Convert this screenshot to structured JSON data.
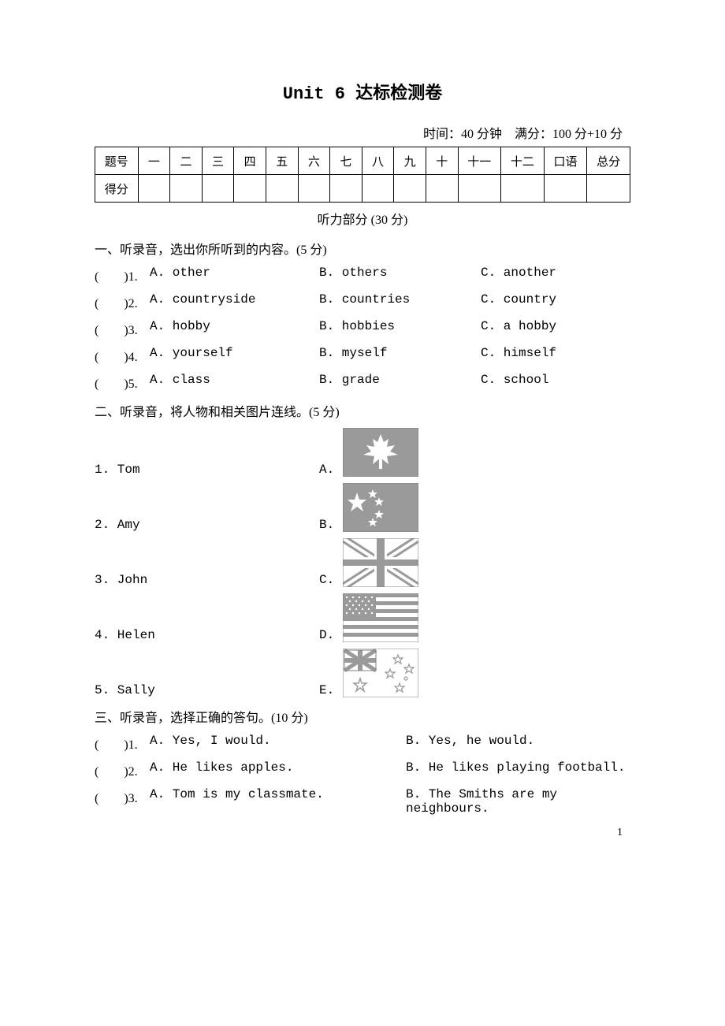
{
  "title": "Unit 6 达标检测卷",
  "meta_line": "时间：40 分钟　满分：100 分+10 分",
  "score_table": {
    "header": [
      "题号",
      "一",
      "二",
      "三",
      "四",
      "五",
      "六",
      "七",
      "八",
      "九",
      "十",
      "十一",
      "十二",
      "口语",
      "总分"
    ],
    "row_label": "得分"
  },
  "listening_header": "听力部分 (30 分)",
  "section1": {
    "heading": "一、听录音，选出你所听到的内容。(5 分)",
    "rows": [
      {
        "n": "1",
        "a": "other",
        "b": "others",
        "c": "another"
      },
      {
        "n": "2",
        "a": "countryside",
        "b": "countries",
        "c": "country"
      },
      {
        "n": "3",
        "a": "hobby",
        "b": "hobbies",
        "c": "a hobby"
      },
      {
        "n": "4",
        "a": "yourself",
        "b": "myself",
        "c": "himself"
      },
      {
        "n": "5",
        "a": "class",
        "b": "grade",
        "c": "school"
      }
    ]
  },
  "section2": {
    "heading": "二、听录音，将人物和相关图片连线。(5 分)",
    "rows": [
      {
        "n": "1",
        "name": "Tom",
        "letter": "A.",
        "flag": "canada"
      },
      {
        "n": "2",
        "name": "Amy",
        "letter": "B.",
        "flag": "china"
      },
      {
        "n": "3",
        "name": "John",
        "letter": "C.",
        "flag": "uk"
      },
      {
        "n": "4",
        "name": "Helen",
        "letter": "D.",
        "flag": "usa"
      },
      {
        "n": "5",
        "name": "Sally",
        "letter": "E.",
        "flag": "australia"
      }
    ]
  },
  "section3": {
    "heading": "三、听录音，选择正确的答句。(10 分)",
    "rows": [
      {
        "n": "1",
        "a": "Yes, I would.",
        "b": "Yes, he would."
      },
      {
        "n": "2",
        "a": "He likes apples.",
        "b": "He likes playing football."
      },
      {
        "n": "3",
        "a": "Tom is my classmate.",
        "b": "The Smiths are my neighbours."
      }
    ]
  },
  "paren_blank": "(　　)",
  "pagenum": "1",
  "colors": {
    "flag_fill": "#9a9a9a",
    "flag_bg": "#ffffff",
    "flag_stroke": "#808080",
    "text": "#000000"
  }
}
